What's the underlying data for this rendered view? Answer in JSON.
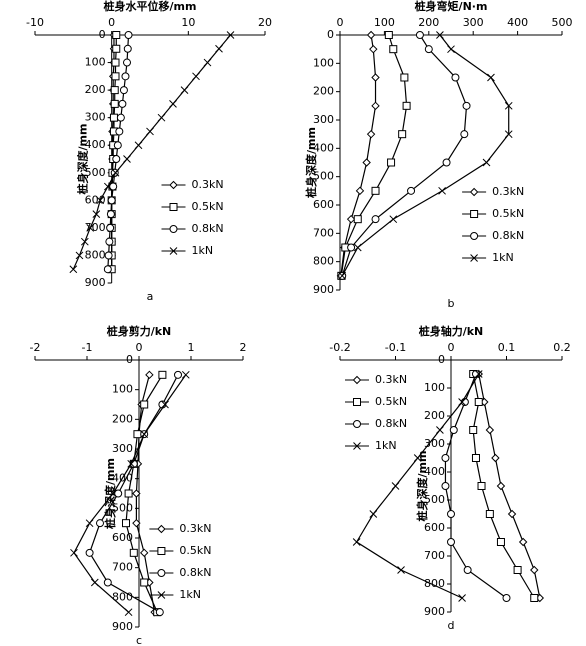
{
  "chart_data": [
    {
      "type": "line",
      "title": "桩身水平位移/mm",
      "y_label": "桩身深度/mm",
      "caption": "a",
      "xlim": [
        -10,
        20
      ],
      "xticks": [
        -10,
        0,
        10,
        20
      ],
      "ylim": [
        0,
        900
      ],
      "yticks": [
        0,
        100,
        200,
        300,
        400,
        500,
        600,
        700,
        800,
        900
      ],
      "y_inverted": true,
      "legend": "lower right",
      "y": [
        0,
        50,
        100,
        150,
        200,
        250,
        300,
        350,
        400,
        450,
        500,
        550,
        600,
        650,
        700,
        750,
        800,
        850
      ],
      "series": [
        {
          "name": "0.3kN",
          "color": "#000000",
          "marker": "diamond",
          "values": [
            0.3,
            0.3,
            0.3,
            0.2,
            0.2,
            0.2,
            0.2,
            0.1,
            0.1,
            0.1,
            0.1,
            0,
            0,
            0,
            0,
            0,
            0,
            0
          ]
        },
        {
          "name": "0.5kN",
          "color": "#000000",
          "marker": "square",
          "values": [
            0.6,
            0.6,
            0.5,
            0.5,
            0.4,
            0.4,
            0.3,
            0.3,
            0.2,
            0.2,
            0.1,
            0.1,
            0,
            0,
            0,
            0,
            0,
            0
          ]
        },
        {
          "name": "0.8kN",
          "color": "#000000",
          "marker": "circle",
          "values": [
            2.2,
            2.1,
            2,
            1.8,
            1.6,
            1.4,
            1.2,
            1,
            0.8,
            0.6,
            0.4,
            0.2,
            0,
            -0.1,
            -0.2,
            -0.3,
            -0.4,
            -0.5
          ]
        },
        {
          "name": "1kN",
          "color": "#000000",
          "marker": "cross",
          "values": [
            15.5,
            14,
            12.5,
            11,
            9.5,
            8,
            6.5,
            5,
            3.5,
            2,
            0.5,
            -0.5,
            -1.5,
            -2,
            -2.8,
            -3.5,
            -4.2,
            -5
          ]
        }
      ]
    },
    {
      "type": "line",
      "title": "桩身弯矩/N·m",
      "y_label": "桩身深度/mm",
      "caption": "b",
      "xlim": [
        0,
        500
      ],
      "xticks": [
        0,
        100,
        200,
        300,
        400,
        500
      ],
      "ylim": [
        0,
        900
      ],
      "yticks": [
        0,
        100,
        200,
        300,
        400,
        500,
        600,
        700,
        800,
        900
      ],
      "y_inverted": true,
      "legend": "lower right",
      "y": [
        0,
        50,
        150,
        250,
        350,
        450,
        550,
        650,
        750,
        850
      ],
      "series": [
        {
          "name": "0.3kN",
          "color": "#000000",
          "marker": "diamond",
          "values": [
            70,
            75,
            80,
            80,
            70,
            60,
            45,
            25,
            10,
            2
          ]
        },
        {
          "name": "0.5kN",
          "color": "#000000",
          "marker": "square",
          "values": [
            110,
            120,
            145,
            150,
            140,
            115,
            80,
            40,
            12,
            3
          ]
        },
        {
          "name": "0.8kN",
          "color": "#000000",
          "marker": "circle",
          "values": [
            180,
            200,
            260,
            285,
            280,
            240,
            160,
            80,
            25,
            5
          ]
        },
        {
          "name": "1kN",
          "color": "#000000",
          "marker": "cross",
          "values": [
            225,
            250,
            340,
            380,
            380,
            330,
            230,
            120,
            40,
            5
          ]
        }
      ]
    },
    {
      "type": "line",
      "title": "桩身剪力/kN",
      "y_label": "桩身深度/mm",
      "caption": "c",
      "xlim": [
        -2,
        2
      ],
      "xticks": [
        -2,
        -1,
        0,
        1,
        2
      ],
      "ylim": [
        0,
        900
      ],
      "yticks": [
        0,
        100,
        200,
        300,
        400,
        500,
        600,
        700,
        800,
        900
      ],
      "y_inverted": true,
      "legend": "lower right",
      "y": [
        50,
        150,
        250,
        350,
        450,
        550,
        650,
        750,
        850
      ],
      "series": [
        {
          "name": "0.3kN",
          "color": "#000000",
          "marker": "diamond",
          "values": [
            0.2,
            0.05,
            0,
            -0.02,
            -0.05,
            -0.05,
            0.1,
            0.2,
            0.3
          ]
        },
        {
          "name": "0.5kN",
          "color": "#000000",
          "marker": "square",
          "values": [
            0.45,
            0.1,
            -0.03,
            -0.1,
            -0.2,
            -0.25,
            -0.1,
            0.1,
            0.35
          ]
        },
        {
          "name": "0.8kN",
          "color": "#000000",
          "marker": "circle",
          "values": [
            0.75,
            0.45,
            0.1,
            -0.1,
            -0.4,
            -0.75,
            -0.95,
            -0.6,
            0.4
          ]
        },
        {
          "name": "1kN",
          "color": "#000000",
          "marker": "cross",
          "values": [
            0.9,
            0.5,
            0.1,
            -0.15,
            -0.5,
            -0.95,
            -1.25,
            -0.85,
            -0.2
          ]
        }
      ]
    },
    {
      "type": "line",
      "title": "桩身轴力/kN",
      "y_label": "桩身深度/mm",
      "caption": "d",
      "xlim": [
        -0.2,
        0.2
      ],
      "xticks": [
        -0.2,
        -0.1,
        0,
        0.1,
        0.2
      ],
      "ylim": [
        0,
        900
      ],
      "yticks": [
        0,
        100,
        200,
        300,
        400,
        500,
        600,
        700,
        800,
        900
      ],
      "y_inverted": true,
      "legend": "upper left",
      "y": [
        50,
        150,
        250,
        350,
        450,
        550,
        650,
        750,
        850
      ],
      "series": [
        {
          "name": "0.3kN",
          "color": "#000000",
          "marker": "diamond",
          "values": [
            0.05,
            0.06,
            0.07,
            0.08,
            0.09,
            0.11,
            0.13,
            0.15,
            0.16
          ]
        },
        {
          "name": "0.5kN",
          "color": "#000000",
          "marker": "square",
          "values": [
            0.04,
            0.05,
            0.04,
            0.045,
            0.055,
            0.07,
            0.09,
            0.12,
            0.15
          ]
        },
        {
          "name": "0.8kN",
          "color": "#000000",
          "marker": "circle",
          "values": [
            0.045,
            0.025,
            0.005,
            -0.01,
            -0.01,
            0,
            0,
            0.03,
            0.1
          ]
        },
        {
          "name": "1kN",
          "color": "#000000",
          "marker": "cross",
          "values": [
            0.05,
            0.02,
            -0.02,
            -0.06,
            -0.1,
            -0.14,
            -0.17,
            -0.09,
            0.02
          ]
        }
      ]
    }
  ]
}
